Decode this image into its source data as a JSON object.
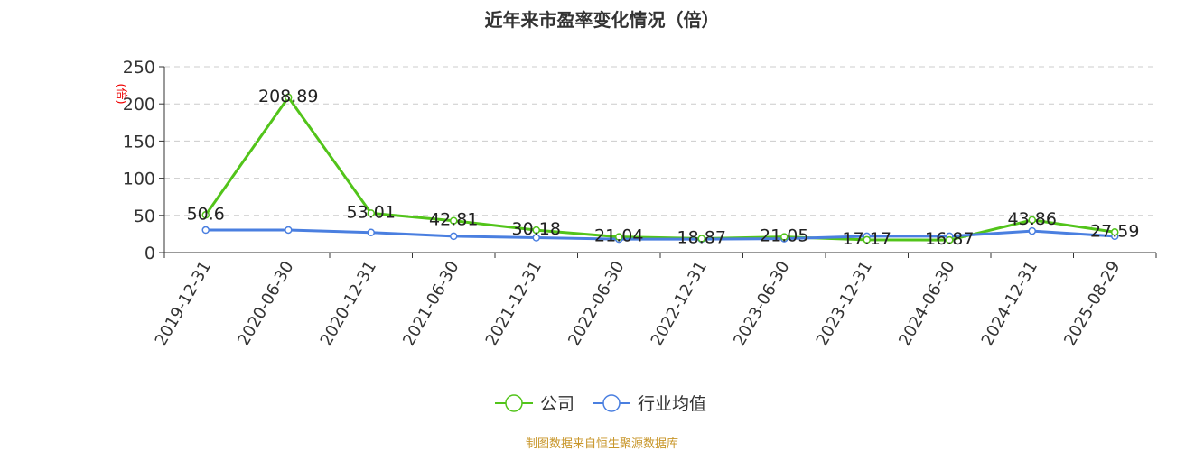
{
  "chart_data": {
    "type": "line",
    "title": "近年来市盈率变化情况（倍）",
    "ylabel": "(倍)",
    "ylim": [
      0,
      250
    ],
    "yticks": [
      0,
      50,
      100,
      150,
      200,
      250
    ],
    "grid": true,
    "legend_position": "bottom",
    "categories": [
      "2019-12-31",
      "2020-06-30",
      "2020-12-31",
      "2021-06-30",
      "2021-12-31",
      "2022-06-30",
      "2022-12-31",
      "2023-06-30",
      "2023-12-31",
      "2024-06-30",
      "2024-12-31",
      "2025-08-29"
    ],
    "series": [
      {
        "name": "公司",
        "color": "#52c41a",
        "labeled": true,
        "values": [
          50.6,
          208.89,
          53.01,
          42.81,
          30.18,
          21.04,
          18.87,
          21.05,
          17.17,
          16.87,
          43.86,
          27.59
        ]
      },
      {
        "name": "行业均值",
        "color": "#4a7fe0",
        "labeled": false,
        "values": [
          30.3,
          30.4,
          27,
          22,
          20,
          18,
          18,
          18.6,
          22,
          22,
          29,
          22
        ]
      }
    ]
  },
  "source": "制图数据来自恒生聚源数据库"
}
